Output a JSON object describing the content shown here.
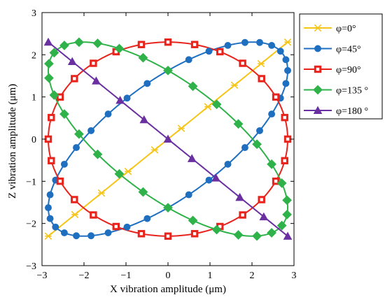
{
  "chart_data": {
    "type": "line",
    "xlabel": "X vibration amplitude (μm)",
    "ylabel": "Z vibration amplitude (μm)",
    "xlim": [
      -3,
      3
    ],
    "ylim": [
      -3,
      3
    ],
    "xticks": [
      -3,
      -2,
      -1,
      0,
      1,
      2,
      3
    ],
    "yticks": [
      -3,
      -2,
      -1,
      0,
      1,
      2,
      3
    ],
    "grid": false,
    "legend_position": "right outside",
    "amplitude_x": 2.85,
    "amplitude_z": 2.3,
    "series": [
      {
        "name": "φ=0°",
        "phase_deg": 0,
        "color": "#f5c518",
        "marker": "x-cross",
        "markers": 10
      },
      {
        "name": "φ=45°",
        "phase_deg": 45,
        "color": "#1f6fc0",
        "marker": "circle",
        "markers": 36
      },
      {
        "name": "φ=90°",
        "phase_deg": 90,
        "color": "#e8231c",
        "marker": "square",
        "markers": 28
      },
      {
        "name": "φ=135 °",
        "phase_deg": 135,
        "color": "#2fb24a",
        "marker": "diamond",
        "markers": 30
      },
      {
        "name": "φ=180 °",
        "phase_deg": 180,
        "color": "#6a2fa0",
        "marker": "triangle",
        "markers": 11
      }
    ]
  }
}
